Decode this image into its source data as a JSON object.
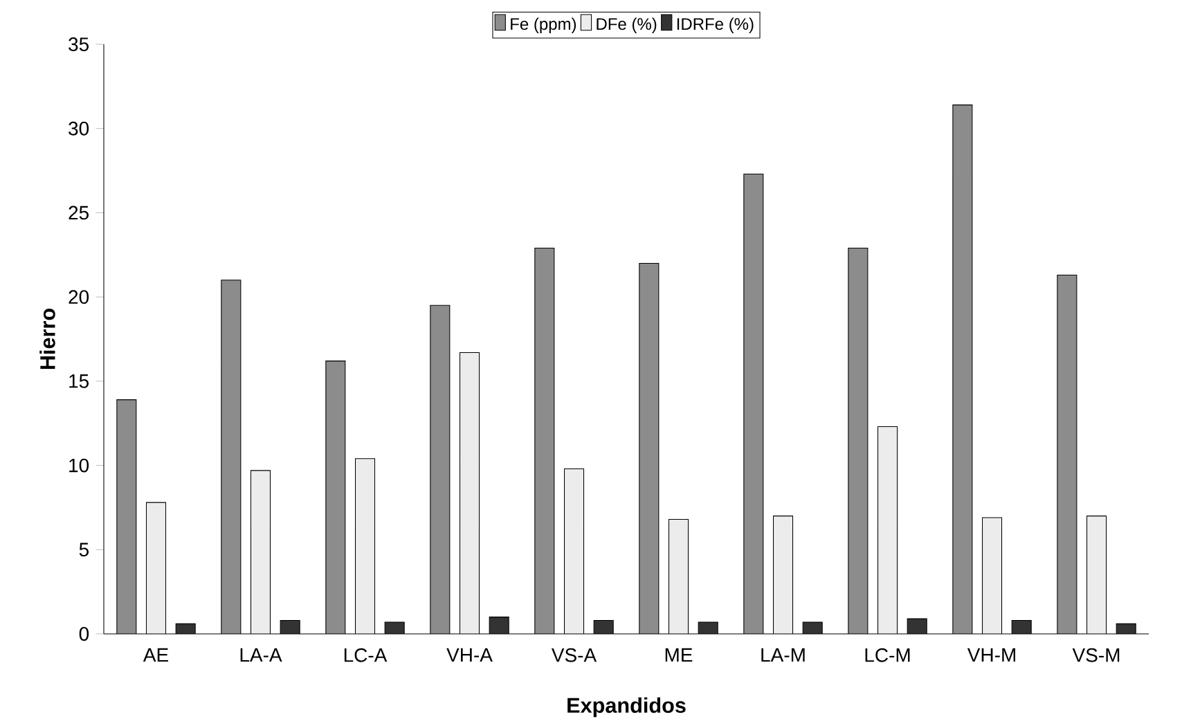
{
  "chart_data": {
    "type": "bar",
    "xlabel": "Expandidos",
    "ylabel": "Hierro",
    "categories": [
      "AE",
      "LA-A",
      "LC-A",
      "VH-A",
      "VS-A",
      "ME",
      "LA-M",
      "LC-M",
      "VH-M",
      "VS-M"
    ],
    "series": [
      {
        "name": "Fe (ppm)",
        "color": "#8c8c8c",
        "values": [
          13.9,
          21.0,
          16.2,
          19.5,
          22.9,
          22.0,
          27.3,
          22.9,
          31.4,
          21.3
        ]
      },
      {
        "name": "DFe (%)",
        "color": "#ececec",
        "values": [
          7.8,
          9.7,
          10.4,
          16.7,
          9.8,
          6.8,
          7.0,
          12.3,
          6.9,
          7.0
        ]
      },
      {
        "name": "IDRFe (%)",
        "color": "#333333",
        "values": [
          0.6,
          0.8,
          0.7,
          1.0,
          0.8,
          0.7,
          0.7,
          0.9,
          0.8,
          0.6
        ]
      }
    ],
    "ylim": [
      0,
      35
    ],
    "yticks": [
      0,
      5,
      10,
      15,
      20,
      25,
      30,
      35
    ],
    "legend": "top"
  }
}
